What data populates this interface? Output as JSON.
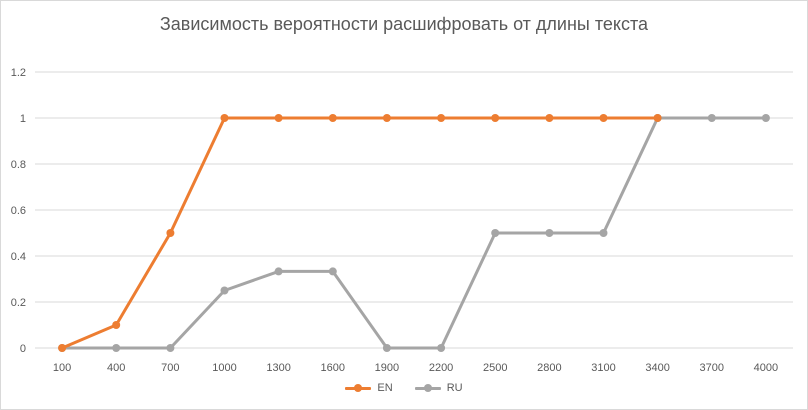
{
  "chart_data": {
    "type": "line",
    "title": "Зависимость вероятности  расшифровать от длины текста",
    "xlabel": "",
    "ylabel": "",
    "categories": [
      "100",
      "400",
      "700",
      "1000",
      "1300",
      "1600",
      "1900",
      "2200",
      "2500",
      "2800",
      "3100",
      "3400",
      "3700",
      "4000"
    ],
    "ylim": [
      0,
      1.2
    ],
    "yticks": [
      "0",
      "0.2",
      "0.4",
      "0.6",
      "0.8",
      "1",
      "1.2"
    ],
    "grid": true,
    "legend": "bottom",
    "series": [
      {
        "name": "EN",
        "color": "#ED7D31",
        "values": [
          0,
          0.1,
          0.5,
          1,
          1,
          1,
          1,
          1,
          1,
          1,
          1,
          1,
          null,
          null
        ]
      },
      {
        "name": "RU",
        "color": "#A5A5A5",
        "values": [
          0,
          0,
          0,
          0.25,
          0.333,
          0.333,
          0,
          0,
          0.5,
          0.5,
          0.5,
          1,
          1,
          1
        ]
      }
    ]
  }
}
